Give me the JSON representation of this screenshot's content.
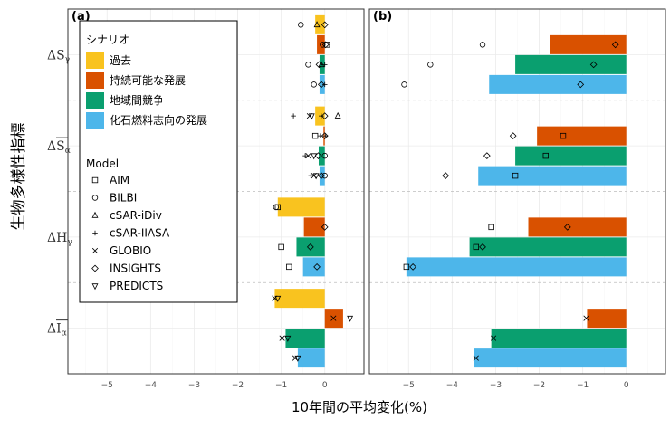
{
  "chart_data": {
    "type": "bar",
    "orientation": "horizontal",
    "ylabel": "生物多様性指標",
    "xlabel": "10年間の平均変化(%)",
    "xlim": [
      -5.9,
      0.9
    ],
    "xticks": [
      -5,
      -4,
      -3,
      -2,
      -1,
      0
    ],
    "grid": true,
    "categories": [
      {
        "id": "Sg",
        "base": "ΔS",
        "sub": "γ",
        "overline": false
      },
      {
        "id": "Sa",
        "base": "ΔS",
        "sub": "α",
        "overline": true
      },
      {
        "id": "Hg",
        "base": "ΔH",
        "sub": "γ",
        "overline": false
      },
      {
        "id": "Ia",
        "base": "ΔI",
        "sub": "α",
        "overline": true
      }
    ],
    "legend": {
      "scenario_title": "シナリオ",
      "model_title": "Model",
      "position": "top-left of panel (a)"
    },
    "scenarios": [
      {
        "name": "過去",
        "color": "#F9C31F"
      },
      {
        "name": "持続可能な発展",
        "color": "#D95100"
      },
      {
        "name": "地域間競争",
        "color": "#0A9F6F"
      },
      {
        "name": "化石燃料志向の発展",
        "color": "#4DB6EA"
      }
    ],
    "models": [
      {
        "name": "AIM",
        "shape": "square"
      },
      {
        "name": "BILBI",
        "shape": "circle"
      },
      {
        "name": "cSAR-iDiv",
        "shape": "triangle"
      },
      {
        "name": "cSAR-IIASA",
        "shape": "plus"
      },
      {
        "name": "GLOBIO",
        "shape": "cross"
      },
      {
        "name": "INSIGHTS",
        "shape": "diamond"
      },
      {
        "name": "PREDICTS",
        "shape": "triangle-down"
      }
    ],
    "panels": [
      {
        "label": "(a)",
        "bars": {
          "Sg": [
            -0.22,
            -0.18,
            -0.12,
            -0.12
          ],
          "Sa": [
            -0.22,
            -0.03,
            -0.14,
            -0.12
          ],
          "Hg": [
            -1.08,
            -0.48,
            -0.65,
            -0.5
          ],
          "Ia": [
            -1.15,
            0.42,
            -0.9,
            -0.62
          ]
        },
        "points": {
          "Sg": [
            [
              [
                "BILBI",
                -0.55
              ],
              [
                "cSAR-iDiv",
                -0.18
              ],
              [
                "INSIGHTS",
                0.0
              ]
            ],
            [
              [
                "BILBI",
                -0.05
              ],
              [
                "INSIGHTS",
                0.02
              ],
              [
                "AIM",
                0.05
              ]
            ],
            [
              [
                "BILBI",
                -0.38
              ],
              [
                "INSIGHTS",
                -0.13
              ],
              [
                "cSAR-iDiv",
                -0.08
              ],
              [
                "cSAR-IIASA",
                0.0
              ]
            ],
            [
              [
                "BILBI",
                -0.25
              ],
              [
                "INSIGHTS",
                -0.08
              ],
              [
                "cSAR-IIASA",
                0.0
              ]
            ]
          ],
          "Sa": [
            [
              [
                "cSAR-IIASA",
                -0.72
              ],
              [
                "GLOBIO",
                -0.35
              ],
              [
                "PREDICTS",
                -0.3
              ],
              [
                "cSAR-IIASA",
                -0.08
              ],
              [
                "INSIGHTS",
                0.0
              ],
              [
                "cSAR-iDiv",
                0.3
              ]
            ],
            [
              [
                "AIM",
                -0.22
              ],
              [
                "cSAR-IIASA",
                -0.1
              ],
              [
                "INSIGHTS",
                0.0
              ],
              [
                "cSAR-IIASA",
                0.02
              ]
            ],
            [
              [
                "cSAR-IIASA",
                -0.45
              ],
              [
                "GLOBIO",
                -0.38
              ],
              [
                "PREDICTS",
                -0.25
              ],
              [
                "INSIGHTS",
                -0.15
              ],
              [
                "BILBI",
                0.0
              ]
            ],
            [
              [
                "cSAR-IIASA",
                -0.32
              ],
              [
                "GLOBIO",
                -0.25
              ],
              [
                "PREDICTS",
                -0.2
              ],
              [
                "INSIGHTS",
                -0.08
              ],
              [
                "BILBI",
                0.0
              ]
            ]
          ],
          "Hg": [
            [
              [
                "AIM",
                -1.08
              ],
              [
                "BILBI",
                -1.12
              ]
            ],
            [
              [
                "INSIGHTS",
                0.0
              ]
            ],
            [
              [
                "AIM",
                -1.0
              ],
              [
                "INSIGHTS",
                -0.33
              ]
            ],
            [
              [
                "AIM",
                -0.82
              ],
              [
                "INSIGHTS",
                -0.18
              ]
            ]
          ],
          "Ia": [
            [
              [
                "GLOBIO",
                -1.15
              ],
              [
                "PREDICTS",
                -1.08
              ]
            ],
            [
              [
                "GLOBIO",
                0.2
              ],
              [
                "PREDICTS",
                0.58
              ]
            ],
            [
              [
                "GLOBIO",
                -0.98
              ],
              [
                "PREDICTS",
                -0.85
              ]
            ],
            [
              [
                "GLOBIO",
                -0.68
              ],
              [
                "PREDICTS",
                -0.62
              ]
            ]
          ]
        }
      },
      {
        "label": "(b)",
        "bars": {
          "Sg": [
            null,
            -1.75,
            -2.55,
            -3.15
          ],
          "Sa": [
            null,
            -2.05,
            -2.55,
            -3.4
          ],
          "Hg": [
            null,
            -2.25,
            -3.6,
            -5.05
          ],
          "Ia": [
            null,
            -0.9,
            -3.1,
            -3.5
          ]
        },
        "points": {
          "Sg": [
            [],
            [
              [
                "BILBI",
                -3.3
              ],
              [
                "INSIGHTS",
                -0.25
              ]
            ],
            [
              [
                "BILBI",
                -4.5
              ],
              [
                "INSIGHTS",
                -0.75
              ]
            ],
            [
              [
                "BILBI",
                -5.1
              ],
              [
                "INSIGHTS",
                -1.05
              ]
            ]
          ],
          "Sa": [
            [],
            [
              [
                "INSIGHTS",
                -2.6
              ],
              [
                "AIM",
                -1.45
              ]
            ],
            [
              [
                "INSIGHTS",
                -3.2
              ],
              [
                "AIM",
                -1.85
              ]
            ],
            [
              [
                "INSIGHTS",
                -4.15
              ],
              [
                "AIM",
                -2.55
              ]
            ]
          ],
          "Hg": [
            [],
            [
              [
                "AIM",
                -3.1
              ],
              [
                "INSIGHTS",
                -1.35
              ]
            ],
            [
              [
                "AIM",
                -3.45
              ],
              [
                "INSIGHTS",
                -3.3
              ]
            ],
            [
              [
                "AIM",
                -5.05
              ],
              [
                "INSIGHTS",
                -4.9
              ]
            ]
          ],
          "Ia": [
            [],
            [
              [
                "GLOBIO",
                -0.92
              ]
            ],
            [
              [
                "GLOBIO",
                -3.05
              ]
            ],
            [
              [
                "GLOBIO",
                -3.45
              ]
            ]
          ]
        }
      }
    ]
  }
}
